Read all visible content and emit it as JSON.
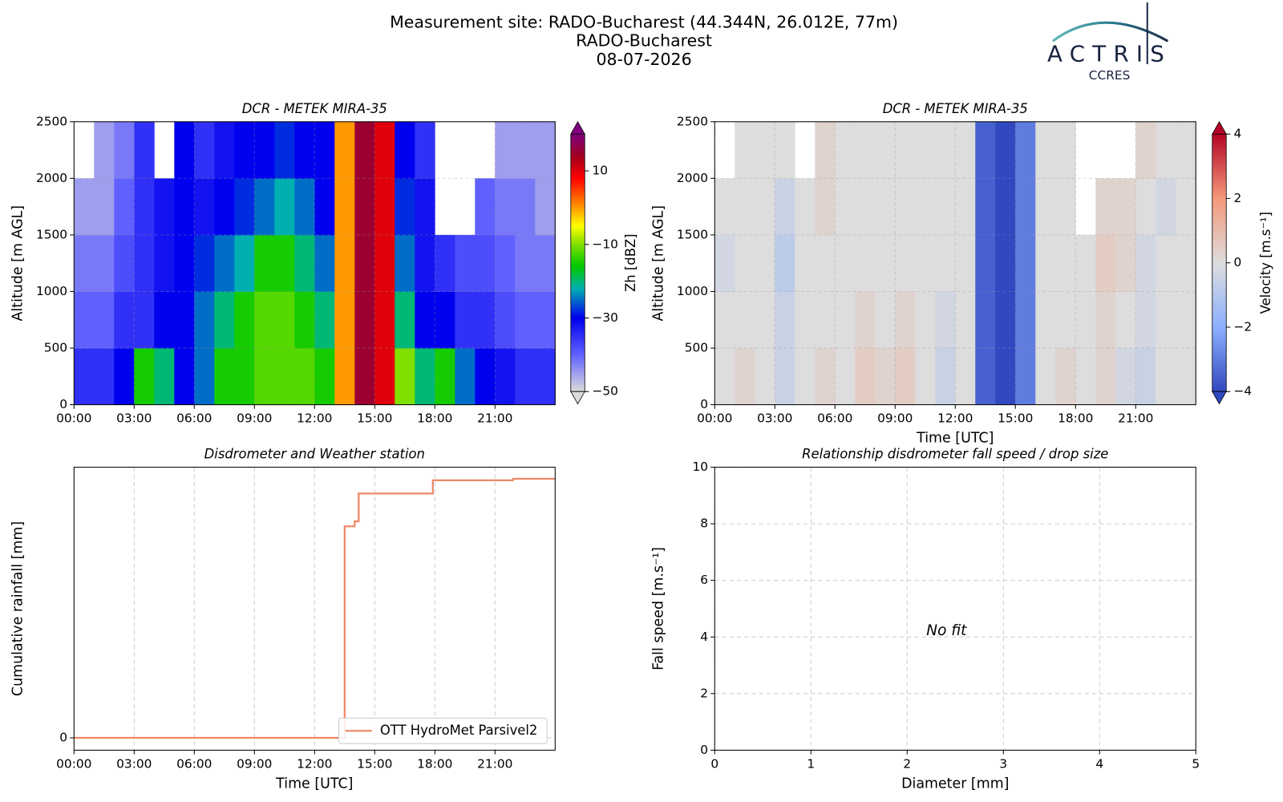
{
  "header": {
    "title_lines": [
      "Measurement site: RADO-Bucharest (44.344N, 26.012E, 77m)",
      "RADO-Bucharest",
      "08-07-2026"
    ],
    "logo": "ACTRIS",
    "logo_sub": "CCRES"
  },
  "chart_data": [
    {
      "type": "heatmap",
      "title": "DCR - METEK MIRA-35",
      "ylabel": "Altitude [m AGL]",
      "x_bins": [
        0,
        1,
        2,
        3,
        4,
        5,
        6,
        7,
        8,
        9,
        10,
        11,
        12,
        13,
        14,
        15,
        16,
        17,
        18,
        19,
        20,
        21,
        22,
        23,
        24
      ],
      "y_bins": [
        0,
        500,
        1000,
        1500,
        2000,
        2500
      ],
      "z": [
        [
          -35,
          -35,
          -30,
          -15,
          -20,
          -30,
          -25,
          -15,
          -15,
          -12,
          -12,
          -12,
          -15,
          0,
          15,
          10,
          -10,
          -20,
          -15,
          -25,
          -30,
          -32,
          -35,
          -35
        ],
        [
          -40,
          -40,
          -35,
          -35,
          -30,
          -30,
          -25,
          -20,
          -15,
          -12,
          -12,
          -15,
          -20,
          0,
          15,
          10,
          -20,
          -30,
          -30,
          -35,
          -35,
          -38,
          -40,
          -40
        ],
        [
          -42,
          -42,
          -38,
          -35,
          -32,
          -30,
          -28,
          -25,
          -22,
          -15,
          -15,
          -20,
          -25,
          0,
          15,
          10,
          -25,
          -32,
          -35,
          -38,
          -38,
          -40,
          -42,
          -42
        ],
        [
          -45,
          -45,
          -40,
          -35,
          -32,
          -30,
          -32,
          -30,
          -28,
          -25,
          -22,
          -25,
          -30,
          0,
          15,
          10,
          -28,
          -32,
          null,
          null,
          -40,
          -42,
          -42,
          -45
        ],
        [
          null,
          -45,
          -42,
          -35,
          null,
          -30,
          -35,
          -32,
          -30,
          -30,
          -28,
          -30,
          -30,
          0,
          15,
          10,
          -30,
          -35,
          null,
          null,
          null,
          -45,
          -45,
          -45
        ]
      ],
      "xlim": [
        0,
        24
      ],
      "xticks": [
        {
          "value": 0,
          "label": "00:00"
        },
        {
          "value": 3,
          "label": "03:00"
        },
        {
          "value": 6,
          "label": "06:00"
        },
        {
          "value": 9,
          "label": "09:00"
        },
        {
          "value": 12,
          "label": "12:00"
        },
        {
          "value": 15,
          "label": "15:00"
        },
        {
          "value": 18,
          "label": "18:00"
        },
        {
          "value": 21,
          "label": "21:00"
        }
      ],
      "ylim": [
        0,
        2500
      ],
      "yticks": [
        0,
        500,
        1000,
        1500,
        2000,
        2500
      ],
      "grid": true,
      "colorbar": {
        "label": "Zh [dBZ]",
        "lim": [
          -50,
          20
        ],
        "ticks": [
          {
            "value": -50,
            "label": "−50"
          },
          {
            "value": -30,
            "label": "−30"
          },
          {
            "value": -10,
            "label": "−10"
          },
          10
        ],
        "colormap": [
          {
            "value": -50,
            "color": "#dcdcdc"
          },
          {
            "value": -40,
            "color": "#6060ff"
          },
          {
            "value": -30,
            "color": "#0000ee"
          },
          {
            "value": -22,
            "color": "#00b0b0"
          },
          {
            "value": -16,
            "color": "#00c800"
          },
          {
            "value": -10,
            "color": "#80e000"
          },
          {
            "value": -5,
            "color": "#ffff00"
          },
          {
            "value": 0,
            "color": "#ff9900"
          },
          {
            "value": 8,
            "color": "#ff0000"
          },
          {
            "value": 14,
            "color": "#a00020"
          },
          {
            "value": 20,
            "color": "#800080"
          }
        ]
      }
    },
    {
      "type": "heatmap",
      "title": "DCR - METEK MIRA-35",
      "ylabel": "Altitude [m AGL]",
      "xlabel": "Time [UTC]",
      "x_bins": [
        0,
        1,
        2,
        3,
        4,
        5,
        6,
        7,
        8,
        9,
        10,
        11,
        12,
        13,
        14,
        15,
        16,
        17,
        18,
        19,
        20,
        21,
        22,
        23,
        24
      ],
      "y_bins": [
        0,
        500,
        1000,
        1500,
        2000,
        2500
      ],
      "z": [
        [
          0,
          0.3,
          0,
          -0.5,
          0,
          0.3,
          0,
          0.5,
          0.3,
          0.5,
          0,
          -0.5,
          0,
          -3.5,
          -4,
          -3,
          0,
          0.3,
          0,
          0.3,
          -0.3,
          -0.5,
          0,
          0
        ],
        [
          0,
          0,
          0,
          -0.5,
          0,
          0,
          0,
          0.3,
          0,
          0.3,
          0,
          -0.3,
          0,
          -3.5,
          -4,
          -3,
          0,
          0,
          0,
          0.3,
          0,
          -0.3,
          0,
          0
        ],
        [
          -0.3,
          0,
          0,
          -0.8,
          0,
          0,
          0,
          0,
          0,
          0,
          0,
          0,
          0,
          -3.5,
          -4,
          -3,
          0,
          0,
          0,
          0.5,
          0.3,
          -0.3,
          0,
          0
        ],
        [
          0,
          0,
          0,
          -0.5,
          0,
          0.3,
          0,
          0,
          0,
          0,
          0,
          0,
          0,
          -3.5,
          -4,
          -3,
          0,
          0,
          null,
          0.3,
          0.3,
          0,
          -0.3,
          0
        ],
        [
          null,
          0,
          0,
          0,
          null,
          0.3,
          0,
          0,
          0,
          0,
          0,
          0,
          0,
          -3.5,
          -4,
          -3,
          0,
          0,
          null,
          null,
          null,
          0.3,
          0,
          0
        ]
      ],
      "xlim": [
        0,
        24
      ],
      "xticks": [
        {
          "value": 0,
          "label": "00:00"
        },
        {
          "value": 3,
          "label": "03:00"
        },
        {
          "value": 6,
          "label": "06:00"
        },
        {
          "value": 9,
          "label": "09:00"
        },
        {
          "value": 12,
          "label": "12:00"
        },
        {
          "value": 15,
          "label": "15:00"
        },
        {
          "value": 18,
          "label": "18:00"
        },
        {
          "value": 21,
          "label": "21:00"
        }
      ],
      "ylim": [
        0,
        2500
      ],
      "yticks": [
        0,
        500,
        1000,
        1500,
        2000,
        2500
      ],
      "grid": true,
      "colorbar": {
        "label": "Velocity [m.s⁻¹]",
        "lim": [
          -4,
          4
        ],
        "ticks": [
          {
            "value": -4,
            "label": "−4"
          },
          {
            "value": -2,
            "label": "−2"
          },
          0,
          2,
          4
        ],
        "colormap": [
          {
            "value": -4,
            "color": "#3048c0"
          },
          {
            "value": -2,
            "color": "#8db0fe"
          },
          {
            "value": 0,
            "color": "#dddddd"
          },
          {
            "value": 2,
            "color": "#f4987a"
          },
          {
            "value": 4,
            "color": "#b40426"
          }
        ]
      }
    },
    {
      "type": "line",
      "title": "Disdrometer and Weather station",
      "ylabel": "Cumulative rainfall [mm]",
      "xlabel": "Time [UTC]",
      "xlim": [
        0,
        24
      ],
      "xticks": [
        {
          "value": 0,
          "label": "00:00"
        },
        {
          "value": 3,
          "label": "03:00"
        },
        {
          "value": 6,
          "label": "06:00"
        },
        {
          "value": 9,
          "label": "09:00"
        },
        {
          "value": 12,
          "label": "12:00"
        },
        {
          "value": 15,
          "label": "15:00"
        },
        {
          "value": 18,
          "label": "18:00"
        },
        {
          "value": 21,
          "label": "21:00"
        }
      ],
      "ylim": [
        -0.5,
        11
      ],
      "yticks": [
        0
      ],
      "grid": true,
      "legend": "lower right",
      "series": [
        {
          "name": "OTT HydroMet Parsivel2",
          "color": "#ee8866",
          "x": [
            0,
            13.5,
            13.5,
            14.0,
            14.0,
            14.2,
            14.2,
            17.9,
            17.9,
            21.9,
            21.9,
            24
          ],
          "values": [
            0,
            0,
            8.6,
            8.6,
            8.8,
            8.8,
            9.93,
            9.93,
            10.47,
            10.47,
            10.53,
            10.53
          ]
        }
      ]
    },
    {
      "type": "scatter",
      "title": "Relationship disdrometer fall speed / drop size",
      "xlabel": "Diameter [mm]",
      "ylabel": "Fall speed [m.s⁻¹]",
      "xlim": [
        0,
        5
      ],
      "xticks": [
        0,
        1,
        2,
        3,
        4,
        5
      ],
      "ylim": [
        0,
        10
      ],
      "yticks": [
        0,
        2,
        4,
        6,
        8,
        10
      ],
      "grid": true,
      "annotations": [
        {
          "text": "No fit",
          "x": 2.2,
          "y": 4.2
        }
      ]
    }
  ]
}
